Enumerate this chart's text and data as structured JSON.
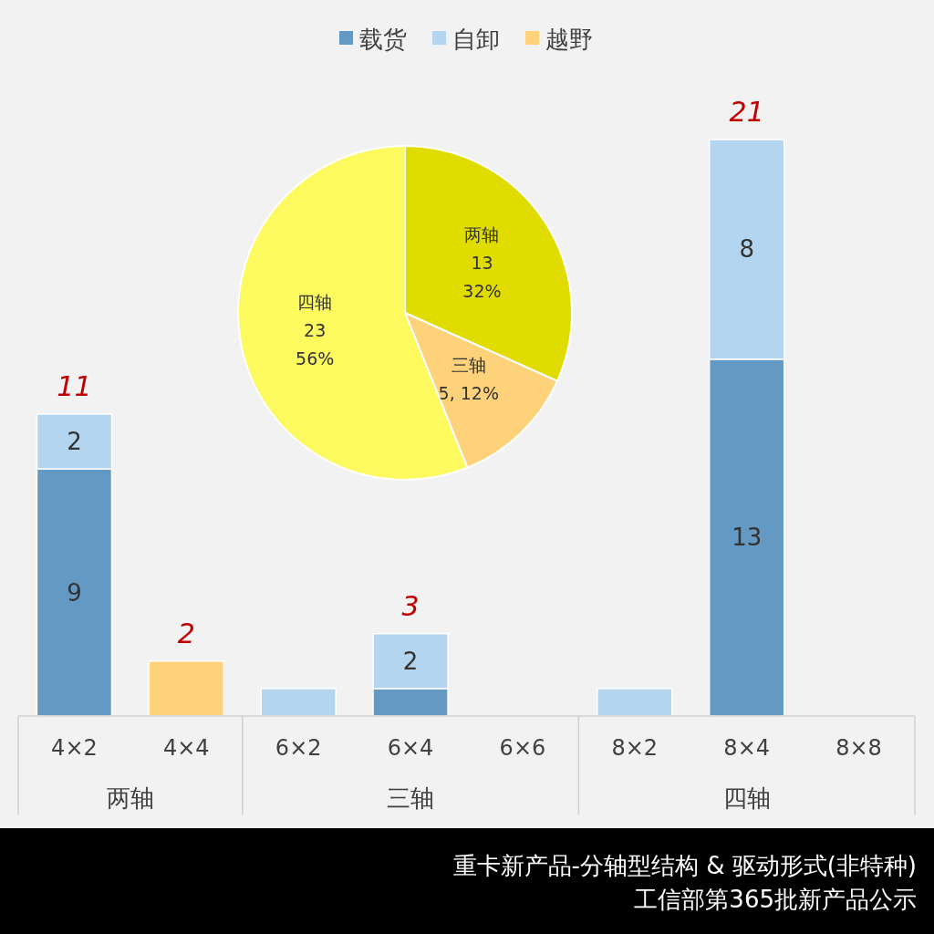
{
  "chart_data": [
    {
      "type": "bar",
      "stacked": true,
      "legend": "top",
      "title": "重卡新产品-分轴型结构 & 驱动形式(非特种)",
      "subtitle": "工信部第365批新产品公示",
      "categories": [
        "4×2",
        "4×4",
        "6×2",
        "6×4",
        "6×6",
        "8×2",
        "8×4",
        "8×8"
      ],
      "annotations": [
        "两轴",
        "三轴",
        "四轴"
      ],
      "series": [
        {
          "name": "载货",
          "color": "#6399c3",
          "values": [
            9,
            0,
            0,
            1,
            0,
            0,
            13,
            0
          ],
          "value_labels": [
            "9",
            null,
            null,
            null,
            null,
            null,
            "13",
            null
          ]
        },
        {
          "name": "自卸",
          "color": "#b4d5ef",
          "values": [
            2,
            0,
            1,
            2,
            0,
            1,
            8,
            0
          ],
          "value_labels": [
            "2",
            null,
            null,
            "2",
            null,
            null,
            "8",
            null
          ]
        },
        {
          "name": "越野",
          "color": "#fdd27a",
          "values": [
            0,
            2,
            0,
            0,
            0,
            0,
            0,
            0
          ],
          "value_labels": [
            null,
            null,
            null,
            null,
            null,
            null,
            null,
            null
          ]
        }
      ],
      "totals": [
        "11",
        "2",
        null,
        "3",
        null,
        null,
        "21",
        null
      ]
    },
    {
      "type": "pie",
      "categories": [
        "两轴",
        "三轴",
        "四轴"
      ],
      "values": [
        13,
        5,
        23
      ],
      "colors": [
        "#e1dc00",
        "#fdd27a",
        "#fcfa5f"
      ],
      "value_labels": [
        "13\n32%",
        "5, 12%",
        "23\n56%"
      ]
    }
  ]
}
